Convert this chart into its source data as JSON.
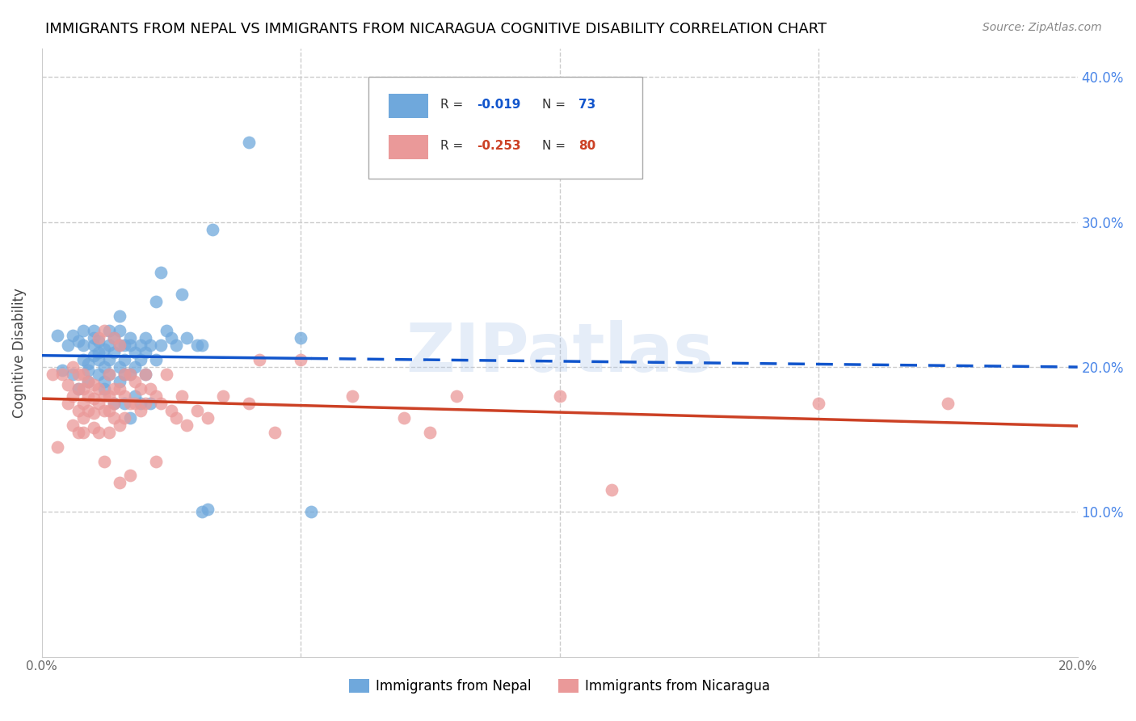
{
  "title": "IMMIGRANTS FROM NEPAL VS IMMIGRANTS FROM NICARAGUA COGNITIVE DISABILITY CORRELATION CHART",
  "source": "Source: ZipAtlas.com",
  "ylabel": "Cognitive Disability",
  "xlabel_nepal": "Immigrants from Nepal",
  "xlabel_nicaragua": "Immigrants from Nicaragua",
  "xlim": [
    0.0,
    0.2
  ],
  "ylim": [
    0.0,
    0.42
  ],
  "nepal_color": "#6fa8dc",
  "nicaragua_color": "#ea9999",
  "nepal_R": -0.019,
  "nepal_N": 73,
  "nicaragua_R": -0.253,
  "nicaragua_N": 80,
  "nepal_line_color": "#1155cc",
  "nicaragua_line_color": "#cc4125",
  "grid_color": "#cccccc",
  "axis_color": "#4a86e8",
  "watermark": "ZIPatlas",
  "nepal_scatter": [
    [
      0.003,
      0.222
    ],
    [
      0.004,
      0.198
    ],
    [
      0.005,
      0.215
    ],
    [
      0.006,
      0.222
    ],
    [
      0.006,
      0.195
    ],
    [
      0.007,
      0.218
    ],
    [
      0.007,
      0.185
    ],
    [
      0.008,
      0.205
    ],
    [
      0.008,
      0.215
    ],
    [
      0.008,
      0.225
    ],
    [
      0.009,
      0.202
    ],
    [
      0.009,
      0.198
    ],
    [
      0.009,
      0.19
    ],
    [
      0.01,
      0.208
    ],
    [
      0.01,
      0.22
    ],
    [
      0.01,
      0.215
    ],
    [
      0.01,
      0.225
    ],
    [
      0.011,
      0.21
    ],
    [
      0.011,
      0.218
    ],
    [
      0.011,
      0.205
    ],
    [
      0.011,
      0.195
    ],
    [
      0.012,
      0.212
    ],
    [
      0.012,
      0.2
    ],
    [
      0.012,
      0.19
    ],
    [
      0.012,
      0.185
    ],
    [
      0.013,
      0.215
    ],
    [
      0.013,
      0.225
    ],
    [
      0.013,
      0.205
    ],
    [
      0.013,
      0.195
    ],
    [
      0.014,
      0.22
    ],
    [
      0.014,
      0.21
    ],
    [
      0.014,
      0.175
    ],
    [
      0.015,
      0.215
    ],
    [
      0.015,
      0.2
    ],
    [
      0.015,
      0.19
    ],
    [
      0.015,
      0.235
    ],
    [
      0.015,
      0.225
    ],
    [
      0.016,
      0.205
    ],
    [
      0.016,
      0.195
    ],
    [
      0.016,
      0.215
    ],
    [
      0.016,
      0.175
    ],
    [
      0.017,
      0.22
    ],
    [
      0.017,
      0.215
    ],
    [
      0.017,
      0.195
    ],
    [
      0.017,
      0.165
    ],
    [
      0.018,
      0.21
    ],
    [
      0.018,
      0.2
    ],
    [
      0.018,
      0.18
    ],
    [
      0.019,
      0.215
    ],
    [
      0.019,
      0.205
    ],
    [
      0.019,
      0.175
    ],
    [
      0.02,
      0.22
    ],
    [
      0.02,
      0.21
    ],
    [
      0.02,
      0.195
    ],
    [
      0.021,
      0.215
    ],
    [
      0.021,
      0.175
    ],
    [
      0.022,
      0.205
    ],
    [
      0.022,
      0.245
    ],
    [
      0.023,
      0.215
    ],
    [
      0.023,
      0.265
    ],
    [
      0.024,
      0.225
    ],
    [
      0.025,
      0.22
    ],
    [
      0.026,
      0.215
    ],
    [
      0.027,
      0.25
    ],
    [
      0.028,
      0.22
    ],
    [
      0.03,
      0.215
    ],
    [
      0.031,
      0.215
    ],
    [
      0.031,
      0.1
    ],
    [
      0.032,
      0.102
    ],
    [
      0.033,
      0.295
    ],
    [
      0.04,
      0.355
    ],
    [
      0.05,
      0.22
    ],
    [
      0.052,
      0.1
    ]
  ],
  "nicaragua_scatter": [
    [
      0.002,
      0.195
    ],
    [
      0.003,
      0.145
    ],
    [
      0.004,
      0.195
    ],
    [
      0.005,
      0.175
    ],
    [
      0.005,
      0.188
    ],
    [
      0.006,
      0.2
    ],
    [
      0.006,
      0.18
    ],
    [
      0.006,
      0.16
    ],
    [
      0.007,
      0.195
    ],
    [
      0.007,
      0.185
    ],
    [
      0.007,
      0.17
    ],
    [
      0.007,
      0.155
    ],
    [
      0.008,
      0.195
    ],
    [
      0.008,
      0.185
    ],
    [
      0.008,
      0.175
    ],
    [
      0.008,
      0.165
    ],
    [
      0.008,
      0.155
    ],
    [
      0.009,
      0.19
    ],
    [
      0.009,
      0.18
    ],
    [
      0.009,
      0.17
    ],
    [
      0.01,
      0.188
    ],
    [
      0.01,
      0.178
    ],
    [
      0.01,
      0.168
    ],
    [
      0.01,
      0.158
    ],
    [
      0.011,
      0.22
    ],
    [
      0.011,
      0.185
    ],
    [
      0.011,
      0.175
    ],
    [
      0.011,
      0.155
    ],
    [
      0.012,
      0.225
    ],
    [
      0.012,
      0.18
    ],
    [
      0.012,
      0.17
    ],
    [
      0.012,
      0.135
    ],
    [
      0.013,
      0.195
    ],
    [
      0.013,
      0.18
    ],
    [
      0.013,
      0.17
    ],
    [
      0.013,
      0.155
    ],
    [
      0.014,
      0.22
    ],
    [
      0.014,
      0.185
    ],
    [
      0.014,
      0.175
    ],
    [
      0.014,
      0.165
    ],
    [
      0.015,
      0.215
    ],
    [
      0.015,
      0.185
    ],
    [
      0.015,
      0.16
    ],
    [
      0.015,
      0.12
    ],
    [
      0.016,
      0.195
    ],
    [
      0.016,
      0.18
    ],
    [
      0.016,
      0.165
    ],
    [
      0.017,
      0.195
    ],
    [
      0.017,
      0.175
    ],
    [
      0.017,
      0.125
    ],
    [
      0.018,
      0.19
    ],
    [
      0.018,
      0.175
    ],
    [
      0.019,
      0.185
    ],
    [
      0.019,
      0.17
    ],
    [
      0.02,
      0.195
    ],
    [
      0.02,
      0.175
    ],
    [
      0.021,
      0.185
    ],
    [
      0.022,
      0.18
    ],
    [
      0.022,
      0.135
    ],
    [
      0.023,
      0.175
    ],
    [
      0.024,
      0.195
    ],
    [
      0.025,
      0.17
    ],
    [
      0.026,
      0.165
    ],
    [
      0.027,
      0.18
    ],
    [
      0.028,
      0.16
    ],
    [
      0.03,
      0.17
    ],
    [
      0.032,
      0.165
    ],
    [
      0.035,
      0.18
    ],
    [
      0.04,
      0.175
    ],
    [
      0.042,
      0.205
    ],
    [
      0.045,
      0.155
    ],
    [
      0.05,
      0.205
    ],
    [
      0.06,
      0.18
    ],
    [
      0.07,
      0.165
    ],
    [
      0.075,
      0.155
    ],
    [
      0.08,
      0.18
    ],
    [
      0.1,
      0.18
    ],
    [
      0.11,
      0.115
    ],
    [
      0.15,
      0.175
    ],
    [
      0.175,
      0.175
    ]
  ]
}
